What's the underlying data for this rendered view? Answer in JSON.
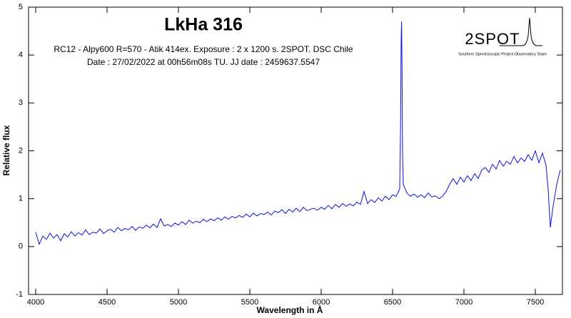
{
  "chart_data": {
    "type": "line",
    "title": "LkHa 316",
    "subtitle": [
      "RC12 - Alpy600 R=570 - Atik 414ex. Exposure : 2 x 1200 s. 2SPOT. DSC Chile",
      "Date : 27/02/2022 at 00h56m08s TU. JJ date : 2459637.5547"
    ],
    "logo": {
      "name": "2SPOT",
      "caption": "Southern Spectroscopic Project Observatory Team"
    },
    "xlabel": "Wavelength in Å",
    "ylabel": "Relative flux",
    "color": "#1010e0",
    "xlim": [
      3950,
      7690
    ],
    "ylim": [
      -1,
      5
    ],
    "xticks": [
      4000,
      4500,
      5000,
      5500,
      6000,
      6500,
      7000,
      7500
    ],
    "yticks": [
      -1,
      0,
      1,
      2,
      3,
      4,
      5
    ],
    "x": [
      4000,
      4025,
      4050,
      4075,
      4100,
      4125,
      4150,
      4175,
      4200,
      4225,
      4250,
      4275,
      4300,
      4325,
      4350,
      4375,
      4400,
      4425,
      4450,
      4475,
      4500,
      4525,
      4550,
      4575,
      4600,
      4625,
      4650,
      4675,
      4700,
      4725,
      4750,
      4775,
      4800,
      4825,
      4850,
      4875,
      4900,
      4925,
      4950,
      4975,
      5000,
      5025,
      5050,
      5075,
      5100,
      5125,
      5150,
      5175,
      5200,
      5225,
      5250,
      5275,
      5300,
      5325,
      5350,
      5375,
      5400,
      5425,
      5450,
      5475,
      5500,
      5525,
      5550,
      5575,
      5600,
      5625,
      5650,
      5675,
      5700,
      5725,
      5750,
      5775,
      5800,
      5825,
      5850,
      5875,
      5900,
      5925,
      5950,
      5975,
      6000,
      6025,
      6050,
      6075,
      6100,
      6125,
      6150,
      6175,
      6200,
      6225,
      6250,
      6275,
      6300,
      6325,
      6350,
      6375,
      6400,
      6425,
      6450,
      6475,
      6500,
      6525,
      6550,
      6556,
      6560,
      6563,
      6566,
      6570,
      6575,
      6600,
      6625,
      6650,
      6675,
      6700,
      6725,
      6750,
      6775,
      6800,
      6825,
      6850,
      6875,
      6900,
      6925,
      6950,
      6975,
      7000,
      7025,
      7050,
      7075,
      7100,
      7125,
      7150,
      7175,
      7200,
      7225,
      7250,
      7275,
      7300,
      7325,
      7350,
      7375,
      7400,
      7425,
      7450,
      7475,
      7500,
      7525,
      7550,
      7575,
      7590,
      7605,
      7625,
      7650,
      7675
    ],
    "values": [
      0.3,
      0.05,
      0.22,
      0.15,
      0.28,
      0.18,
      0.25,
      0.12,
      0.27,
      0.2,
      0.31,
      0.22,
      0.29,
      0.24,
      0.35,
      0.25,
      0.3,
      0.28,
      0.37,
      0.27,
      0.33,
      0.36,
      0.3,
      0.4,
      0.33,
      0.38,
      0.35,
      0.42,
      0.34,
      0.41,
      0.38,
      0.45,
      0.39,
      0.47,
      0.4,
      0.58,
      0.43,
      0.46,
      0.42,
      0.49,
      0.45,
      0.52,
      0.46,
      0.55,
      0.49,
      0.53,
      0.5,
      0.57,
      0.52,
      0.58,
      0.54,
      0.6,
      0.55,
      0.62,
      0.57,
      0.63,
      0.6,
      0.65,
      0.61,
      0.68,
      0.62,
      0.7,
      0.64,
      0.69,
      0.67,
      0.72,
      0.66,
      0.74,
      0.71,
      0.77,
      0.69,
      0.78,
      0.72,
      0.8,
      0.73,
      0.82,
      0.75,
      0.78,
      0.8,
      0.76,
      0.82,
      0.78,
      0.86,
      0.79,
      0.88,
      0.82,
      0.9,
      0.84,
      0.89,
      0.85,
      0.93,
      0.88,
      1.15,
      0.9,
      0.98,
      0.92,
      1.02,
      0.95,
      1.05,
      0.98,
      1.08,
      1.05,
      1.2,
      2.5,
      4.3,
      4.7,
      3.9,
      2.0,
      1.3,
      1.12,
      1.05,
      1.1,
      1.03,
      1.08,
      1.02,
      1.12,
      1.04,
      1.06,
      1.0,
      1.05,
      1.15,
      1.3,
      1.42,
      1.3,
      1.45,
      1.35,
      1.48,
      1.38,
      1.52,
      1.42,
      1.6,
      1.65,
      1.55,
      1.72,
      1.62,
      1.8,
      1.68,
      1.78,
      1.72,
      1.88,
      1.75,
      1.85,
      1.78,
      1.92,
      1.8,
      2.0,
      1.75,
      1.95,
      1.7,
      1.2,
      0.4,
      0.85,
      1.3,
      1.6
    ]
  }
}
